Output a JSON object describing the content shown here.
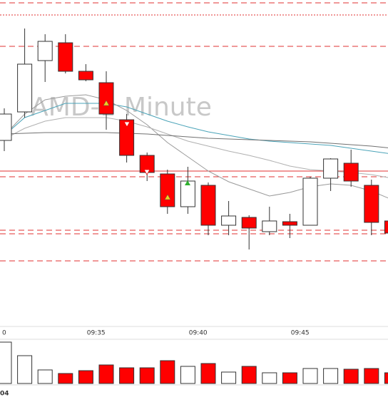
{
  "chart_data": {
    "type": "candlestick",
    "watermark": "AMD-1 Minute",
    "categories": [
      "0",
      null,
      null,
      null,
      null,
      "09:35",
      null,
      null,
      null,
      null,
      "09:40",
      null,
      null,
      null,
      null,
      "09:45",
      null,
      null,
      null,
      null
    ],
    "open": [
      263,
      303,
      375,
      400,
      360,
      344,
      292,
      242,
      216,
      170,
      200,
      144,
      155,
      135,
      149,
      144,
      210,
      231,
      200,
      150
    ],
    "high": [
      308,
      420,
      412,
      412,
      370,
      360,
      300,
      246,
      222,
      226,
      204,
      178,
      158,
      170,
      160,
      212,
      238,
      250,
      208,
      160
    ],
    "low": [
      248,
      295,
      345,
      357,
      346,
      278,
      232,
      206,
      160,
      160,
      130,
      130,
      110,
      130,
      126,
      144,
      192,
      198,
      130,
      130
    ],
    "close": [
      300,
      370,
      402,
      360,
      348,
      300,
      242,
      218,
      170,
      206,
      144,
      157,
      140,
      150,
      144,
      210,
      237,
      206,
      148,
      133
    ],
    "up_color": "#ffffff",
    "down_color": "#ff0000",
    "ylim": [
      0,
      460
    ],
    "lines": [
      {
        "color": "#4aa3b8",
        "values": [
          270,
          295,
          305,
          315,
          315,
          315,
          310,
          300,
          290,
          282,
          275,
          270,
          265,
          262,
          260,
          258,
          256,
          252,
          248,
          244
        ]
      },
      {
        "color": "#9a9a9a",
        "values": [
          270,
          300,
          320,
          325,
          327,
          320,
          305,
          285,
          260,
          240,
          220,
          205,
          195,
          185,
          190,
          198,
          202,
          200,
          192,
          180
        ]
      },
      {
        "color": "#b0b0b0",
        "values": [
          265,
          280,
          290,
          295,
          295,
          295,
          290,
          282,
          272,
          262,
          255,
          248,
          242,
          235,
          227,
          222,
          220,
          218,
          215,
          210
        ]
      },
      {
        "color": "#707070",
        "values": [
          272,
          273,
          274,
          274,
          274,
          274,
          273,
          272,
          270,
          268,
          266,
          265,
          264,
          263,
          262,
          261,
          259,
          257,
          255,
          252
        ]
      }
    ],
    "levels": [
      {
        "value": 456,
        "style": "dashed"
      },
      {
        "value": 439,
        "style": "dotted"
      },
      {
        "value": 395,
        "style": "dashed"
      },
      {
        "value": 220,
        "style": "solid"
      },
      {
        "value": 212,
        "style": "dashed"
      },
      {
        "value": 137,
        "style": "dashed"
      },
      {
        "value": 132,
        "style": "dashed"
      },
      {
        "value": 94,
        "style": "dashed"
      }
    ],
    "level_color": "#e03030",
    "volume": [
      58,
      39,
      19,
      14,
      18,
      26,
      22,
      22,
      32,
      24,
      28,
      16,
      24,
      15,
      15,
      21,
      21,
      20,
      21,
      15
    ],
    "volume_ylim": [
      0,
      60
    ],
    "volume_label": "04"
  }
}
